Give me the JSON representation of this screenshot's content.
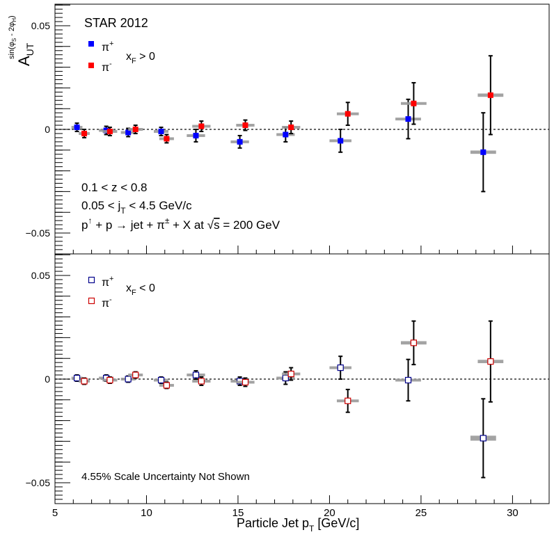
{
  "chart_data": [
    {
      "type": "scatter",
      "panel": "top",
      "title": "STAR 2012",
      "ylabel": "A_UT^{sin(φS - 2φH)}",
      "ylim": [
        -0.058,
        0.06
      ],
      "yticks": [
        0.05,
        0,
        -0.05
      ],
      "ytick_labels": [
        "0.05",
        "0",
        "−0.05"
      ],
      "legend": {
        "placement": "top-left",
        "entries": [
          {
            "name": "π+",
            "marker": "filled-square",
            "color": "#0000ff"
          },
          {
            "name": "π-",
            "marker": "filled-square",
            "color": "#ff0000"
          }
        ],
        "condition": "xF > 0"
      },
      "annotations": [
        "0.1 < z < 0.8",
        "0.05 < jT < 4.5 GeV/c",
        "p↑ + p → jet + π± + X at √s = 200 GeV"
      ],
      "series": [
        {
          "name": "π+",
          "color": "#0000ff",
          "marker": "filled-square",
          "x": [
            6.2,
            7.8,
            9.0,
            10.8,
            12.7,
            15.1,
            17.6,
            20.6,
            24.3,
            28.4
          ],
          "y": [
            0.001,
            -0.0005,
            -0.0015,
            -0.001,
            -0.003,
            -0.006,
            -0.0025,
            -0.0055,
            0.005,
            -0.011
          ],
          "err": [
            0.002,
            0.002,
            0.002,
            0.002,
            0.003,
            0.003,
            0.0035,
            0.0055,
            0.0095,
            0.019
          ],
          "xerr": [
            0.3,
            0.4,
            0.4,
            0.4,
            0.5,
            0.5,
            0.5,
            0.6,
            0.7,
            0.7
          ],
          "syst": [
            0.0005,
            0.0005,
            0.0005,
            0.0005,
            0.0005,
            0.0005,
            0.0005,
            0.0005,
            0.0005,
            0.0008
          ]
        },
        {
          "name": "π-",
          "color": "#ff0000",
          "marker": "filled-square",
          "x": [
            6.6,
            8.0,
            9.4,
            11.1,
            13.0,
            15.4,
            17.9,
            21.0,
            24.6,
            28.8
          ],
          "y": [
            -0.002,
            -0.001,
            0.0,
            -0.0045,
            0.0015,
            0.002,
            0.001,
            0.0075,
            0.0125,
            0.0165
          ],
          "err": [
            0.002,
            0.002,
            0.002,
            0.002,
            0.0025,
            0.0025,
            0.003,
            0.0055,
            0.01,
            0.019
          ],
          "xerr": [
            0.3,
            0.4,
            0.4,
            0.4,
            0.5,
            0.5,
            0.5,
            0.6,
            0.7,
            0.7
          ],
          "syst": [
            0.0005,
            0.0005,
            0.0005,
            0.0005,
            0.0005,
            0.0005,
            0.0005,
            0.0005,
            0.0005,
            0.0008
          ]
        }
      ]
    },
    {
      "type": "scatter",
      "panel": "bottom",
      "ylim": [
        -0.06,
        0.058
      ],
      "yticks": [
        0.05,
        0,
        -0.05
      ],
      "ytick_labels": [
        "0.05",
        "0",
        "−0.05"
      ],
      "xlabel": "Particle Jet pT [GeV/c]",
      "xlim": [
        5,
        32
      ],
      "xticks": [
        5,
        10,
        15,
        20,
        25,
        30
      ],
      "xtick_labels": [
        "5",
        "10",
        "15",
        "20",
        "25",
        "30"
      ],
      "legend": {
        "placement": "top-left",
        "entries": [
          {
            "name": "π+",
            "marker": "open-square",
            "color": "#00008b"
          },
          {
            "name": "π-",
            "marker": "open-square",
            "color": "#cc0000"
          }
        ],
        "condition": "xF < 0"
      },
      "annotations": [
        "4.55% Scale Uncertainty Not Shown"
      ],
      "series": [
        {
          "name": "π+",
          "color": "#00008b",
          "marker": "open-square",
          "x": [
            6.2,
            7.8,
            9.0,
            10.8,
            12.7,
            15.1,
            17.6,
            20.6,
            24.3,
            28.4
          ],
          "y": [
            0.0005,
            0.0005,
            0.0,
            -0.0005,
            0.002,
            -0.001,
            0.0005,
            0.0055,
            -0.0005,
            -0.0285
          ],
          "err": [
            0.0015,
            0.0015,
            0.0015,
            0.0015,
            0.002,
            0.002,
            0.003,
            0.0055,
            0.01,
            0.019
          ],
          "xerr": [
            0.3,
            0.4,
            0.4,
            0.4,
            0.5,
            0.5,
            0.5,
            0.6,
            0.7,
            0.7
          ],
          "syst": [
            0.0005,
            0.0005,
            0.0005,
            0.0005,
            0.0005,
            0.0005,
            0.0005,
            0.0005,
            0.0005,
            0.0012
          ]
        },
        {
          "name": "π-",
          "color": "#cc0000",
          "marker": "open-square",
          "x": [
            6.6,
            8.0,
            9.4,
            11.1,
            13.0,
            15.4,
            17.9,
            21.0,
            24.6,
            28.8
          ],
          "y": [
            -0.001,
            -0.0005,
            0.002,
            -0.003,
            -0.001,
            -0.0015,
            0.0025,
            -0.0105,
            0.0175,
            0.0085
          ],
          "err": [
            0.0015,
            0.0015,
            0.0015,
            0.0015,
            0.002,
            0.002,
            0.003,
            0.0055,
            0.0105,
            0.0195
          ],
          "xerr": [
            0.3,
            0.4,
            0.4,
            0.4,
            0.5,
            0.5,
            0.5,
            0.6,
            0.7,
            0.7
          ],
          "syst": [
            0.0005,
            0.0005,
            0.0005,
            0.0005,
            0.0005,
            0.0005,
            0.0005,
            0.0005,
            0.0008,
            0.0008
          ]
        }
      ]
    }
  ],
  "text": {
    "title": "STAR 2012",
    "ylabel_A": "A",
    "ylabel_sub": "UT",
    "ylabel_sup": "sin(φ",
    "ylabel_sup_s": "S",
    "ylabel_sup_mid": " - 2φ",
    "ylabel_sup_h": "H",
    "ylabel_sup_end": ")",
    "pi": "π",
    "plus": "+",
    "minus": "-",
    "xf_x": "x",
    "xf_sub": "F",
    "xf_gt": " > 0",
    "xf_lt": " < 0",
    "ann1": "0.1 < z < 0.8",
    "ann2_a": "0.05 < j",
    "ann2_sub": "T",
    "ann2_b": " < 4.5 GeV/c",
    "ann3_p": "p",
    "ann3_up": "↑",
    "ann3_mid": " + p → jet + π",
    "ann3_pm": "±",
    "ann3_x": " + X at ",
    "ann3_sqrt": "√",
    "ann3_s": "s",
    "ann3_end": " = 200 GeV",
    "scale_note": "4.55% Scale Uncertainty Not Shown",
    "xlabel_a": "Particle Jet p",
    "xlabel_sub": "T",
    "xlabel_b": " [GeV/c]"
  }
}
